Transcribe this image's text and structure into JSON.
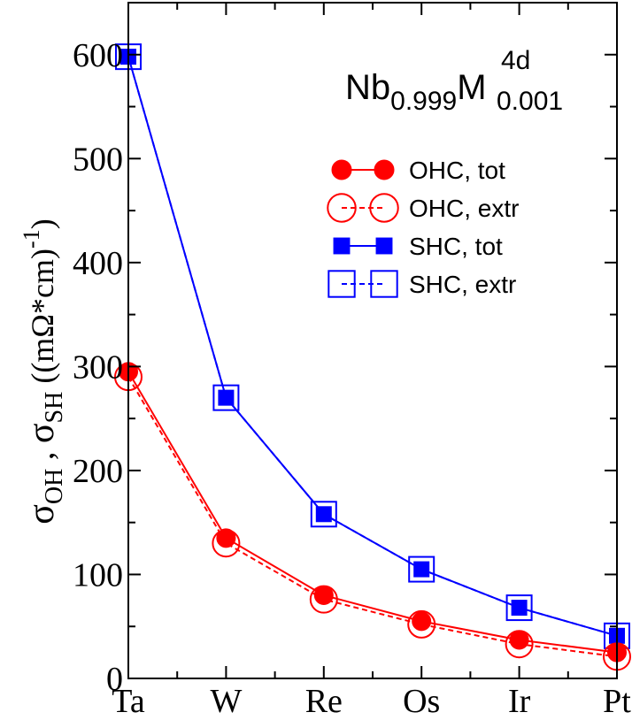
{
  "chart_data": {
    "type": "line",
    "title": "",
    "categories": [
      "Ta",
      "W",
      "Re",
      "Os",
      "Ir",
      "Pt"
    ],
    "ylim": [
      0,
      650
    ],
    "yticks": [
      0,
      100,
      200,
      300,
      400,
      500,
      600
    ],
    "ylabel": {
      "sigma": "σ",
      "sub1": "OH",
      "comma": " , ",
      "sub2": "SH",
      "units": "  ((mΩ*cm)",
      "exponent": "-1",
      "close": ")"
    },
    "annotation": {
      "base1": "Nb",
      "sub1": "0.999",
      "base2": "M",
      "sup2": "4d",
      "sub2": "0.001"
    },
    "series": [
      {
        "name": "OHC, tot",
        "color": "#ff0000",
        "marker": "circle",
        "filled": true,
        "dashed": false,
        "values": [
          295,
          135,
          80,
          55,
          37,
          25
        ]
      },
      {
        "name": "OHC, extr",
        "color": "#ff0000",
        "marker": "circle",
        "filled": false,
        "dashed": true,
        "values": [
          290,
          130,
          76,
          52,
          33,
          21
        ]
      },
      {
        "name": "SHC, tot",
        "color": "#0000ff",
        "marker": "square",
        "filled": true,
        "dashed": false,
        "values": [
          598,
          270,
          158,
          105,
          68,
          41
        ]
      },
      {
        "name": "SHC, extr",
        "color": "#0000ff",
        "marker": "square",
        "filled": false,
        "dashed": true,
        "values": [
          598,
          270,
          158,
          105,
          68,
          41
        ]
      }
    ],
    "legend_position": "top-right",
    "grid": false
  }
}
